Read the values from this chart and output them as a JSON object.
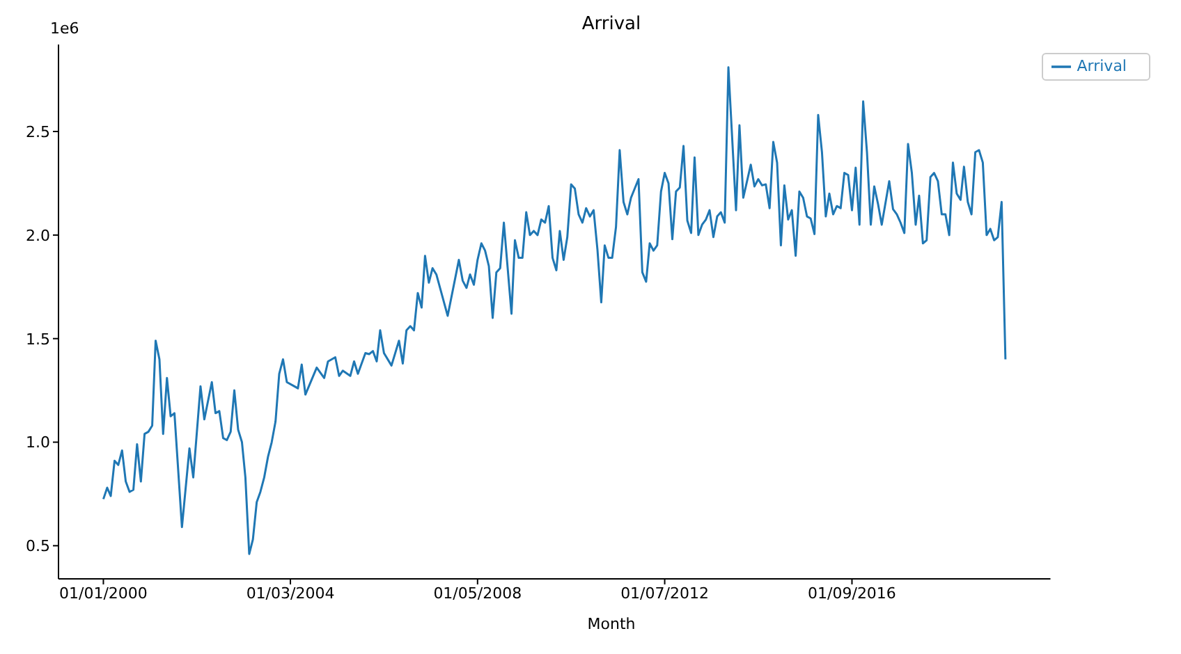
{
  "chart_data": {
    "type": "line",
    "title": "Arrival",
    "xlabel": "Month",
    "annotations": [
      "1e6"
    ],
    "x": [
      "2000-01",
      "2000-02",
      "2000-03",
      "2000-04",
      "2000-05",
      "2000-06",
      "2000-07",
      "2000-08",
      "2000-09",
      "2000-10",
      "2000-11",
      "2000-12",
      "2001-01",
      "2001-02",
      "2001-03",
      "2001-04",
      "2001-05",
      "2001-06",
      "2001-07",
      "2001-08",
      "2001-10",
      "2001-12",
      "2002-01",
      "2002-03",
      "2002-04",
      "2002-06",
      "2002-07",
      "2002-08",
      "2002-09",
      "2002-10",
      "2002-11",
      "2002-12",
      "2003-01",
      "2003-02",
      "2003-03",
      "2003-04",
      "2003-05",
      "2003-06",
      "2003-07",
      "2003-08",
      "2003-09",
      "2003-10",
      "2003-11",
      "2003-12",
      "2004-01",
      "2004-02",
      "2004-04",
      "2004-05",
      "2004-06",
      "2004-07",
      "2004-10",
      "2004-12",
      "2005-01",
      "2005-03",
      "2005-04",
      "2005-05",
      "2005-07",
      "2005-08",
      "2005-09",
      "2005-11",
      "2005-12",
      "2006-01",
      "2006-02",
      "2006-03",
      "2006-04",
      "2006-06",
      "2006-08",
      "2006-09",
      "2006-10",
      "2006-11",
      "2006-12",
      "2007-01",
      "2007-02",
      "2007-03",
      "2007-04",
      "2007-05",
      "2007-06",
      "2007-09",
      "2007-12",
      "2008-01",
      "2008-02",
      "2008-03",
      "2008-04",
      "2008-05",
      "2008-06",
      "2008-07",
      "2008-08",
      "2008-09",
      "2008-10",
      "2008-11",
      "2008-12",
      "2009-02",
      "2009-03",
      "2009-04",
      "2009-05",
      "2009-06",
      "2009-07",
      "2009-08",
      "2009-09",
      "2009-10",
      "2009-11",
      "2009-12",
      "2010-01",
      "2010-02",
      "2010-03",
      "2010-04",
      "2010-05",
      "2010-06",
      "2010-07",
      "2010-08",
      "2010-09",
      "2010-10",
      "2010-11",
      "2010-12",
      "2011-01",
      "2011-02",
      "2011-03",
      "2011-04",
      "2011-05",
      "2011-06",
      "2011-07",
      "2011-08",
      "2011-09",
      "2011-10",
      "2011-12",
      "2012-01",
      "2012-02",
      "2012-03",
      "2012-04",
      "2012-05",
      "2012-06",
      "2012-07",
      "2012-08",
      "2012-09",
      "2012-10",
      "2012-11",
      "2012-12",
      "2013-01",
      "2013-02",
      "2013-03",
      "2013-04",
      "2013-05",
      "2013-06",
      "2013-07",
      "2013-08",
      "2013-09",
      "2013-10",
      "2013-11",
      "2013-12",
      "2014-02",
      "2014-03",
      "2014-04",
      "2014-06",
      "2014-07",
      "2014-08",
      "2014-09",
      "2014-10",
      "2014-11",
      "2014-12",
      "2015-01",
      "2015-02",
      "2015-03",
      "2015-04",
      "2015-05",
      "2015-06",
      "2015-07",
      "2015-08",
      "2015-09",
      "2015-10",
      "2015-11",
      "2015-12",
      "2016-01",
      "2016-02",
      "2016-03",
      "2016-04",
      "2016-05",
      "2016-06",
      "2016-07",
      "2016-08",
      "2016-09",
      "2016-10",
      "2016-11",
      "2016-12",
      "2017-01",
      "2017-02",
      "2017-03",
      "2017-04",
      "2017-05",
      "2017-07",
      "2017-08",
      "2017-09",
      "2017-10",
      "2017-11",
      "2017-12",
      "2018-01",
      "2018-02",
      "2018-03",
      "2018-04",
      "2018-05",
      "2018-06",
      "2018-07",
      "2018-08",
      "2018-09",
      "2018-10",
      "2018-11",
      "2018-12",
      "2019-01",
      "2019-02",
      "2019-03",
      "2019-04",
      "2019-05",
      "2019-06",
      "2019-07",
      "2019-08",
      "2019-09",
      "2019-10",
      "2019-11",
      "2019-12",
      "2020-01",
      "2020-02"
    ],
    "series": [
      {
        "name": "Arrival",
        "color": "#1f77b4",
        "values": [
          0.725,
          0.78,
          0.74,
          0.91,
          0.89,
          0.96,
          0.81,
          0.76,
          0.77,
          0.99,
          0.81,
          1.04,
          1.05,
          1.08,
          1.49,
          1.4,
          1.04,
          1.31,
          1.125,
          1.14,
          0.59,
          0.97,
          0.83,
          1.27,
          1.11,
          1.29,
          1.14,
          1.15,
          1.02,
          1.01,
          1.05,
          1.25,
          1.06,
          1.0,
          0.83,
          0.46,
          0.53,
          0.71,
          0.76,
          0.83,
          0.93,
          1.0,
          1.1,
          1.33,
          1.4,
          1.29,
          1.27,
          1.26,
          1.375,
          1.23,
          1.36,
          1.31,
          1.39,
          1.41,
          1.32,
          1.345,
          1.32,
          1.39,
          1.33,
          1.43,
          1.425,
          1.44,
          1.39,
          1.54,
          1.43,
          1.37,
          1.49,
          1.38,
          1.54,
          1.56,
          1.54,
          1.72,
          1.65,
          1.9,
          1.77,
          1.84,
          1.81,
          1.61,
          1.88,
          1.78,
          1.745,
          1.81,
          1.76,
          1.88,
          1.96,
          1.925,
          1.85,
          1.6,
          1.82,
          1.84,
          2.06,
          1.62,
          1.975,
          1.89,
          1.89,
          2.11,
          2.0,
          2.02,
          2.0,
          2.075,
          2.06,
          2.14,
          1.89,
          1.83,
          2.02,
          1.88,
          1.99,
          2.245,
          2.225,
          2.1,
          2.06,
          2.13,
          2.09,
          2.12,
          1.93,
          1.675,
          1.95,
          1.89,
          1.89,
          2.04,
          2.41,
          2.16,
          2.1,
          2.18,
          2.27,
          1.82,
          1.775,
          1.96,
          1.925,
          1.95,
          2.21,
          2.3,
          2.25,
          1.98,
          2.21,
          2.23,
          2.43,
          2.07,
          2.01,
          2.375,
          2.0,
          2.05,
          2.075,
          2.12,
          1.99,
          2.09,
          2.11,
          2.06,
          2.81,
          2.12,
          2.53,
          2.18,
          2.34,
          2.235,
          2.27,
          2.24,
          2.245,
          2.13,
          2.45,
          2.35,
          1.95,
          2.24,
          2.075,
          2.12,
          1.9,
          2.21,
          2.18,
          2.09,
          2.08,
          2.005,
          2.58,
          2.4,
          2.09,
          2.2,
          2.1,
          2.14,
          2.13,
          2.3,
          2.29,
          2.12,
          2.325,
          2.05,
          2.645,
          2.4,
          2.05,
          2.235,
          2.15,
          2.05,
          2.26,
          2.125,
          2.1,
          2.06,
          2.01,
          2.44,
          2.3,
          2.05,
          2.19,
          1.96,
          1.975,
          2.28,
          2.3,
          2.26,
          2.1,
          2.1,
          2.0,
          2.35,
          2.2,
          2.17,
          2.33,
          2.16,
          2.1,
          2.4,
          2.41,
          2.35,
          2.0,
          2.03,
          1.975,
          1.99,
          2.16,
          1.4
        ]
      }
    ],
    "xlim": [
      "1999-01",
      "2021-02"
    ],
    "xticks": [
      {
        "value": "2000-01",
        "label": "01/01/2000"
      },
      {
        "value": "2004-03",
        "label": "01/03/2004"
      },
      {
        "value": "2008-05",
        "label": "01/05/2008"
      },
      {
        "value": "2012-07",
        "label": "01/07/2012"
      },
      {
        "value": "2016-09",
        "label": "01/09/2016"
      }
    ],
    "ylim": [
      0.34,
      2.92
    ],
    "yticks": [
      0.5,
      {
        "value": 1.0,
        "label": "1.0"
      },
      1.5,
      {
        "value": 2.0,
        "label": "2.0"
      },
      2.5
    ],
    "legend": "top right",
    "grid": false,
    "marker": "none",
    "line_style": "solid"
  }
}
